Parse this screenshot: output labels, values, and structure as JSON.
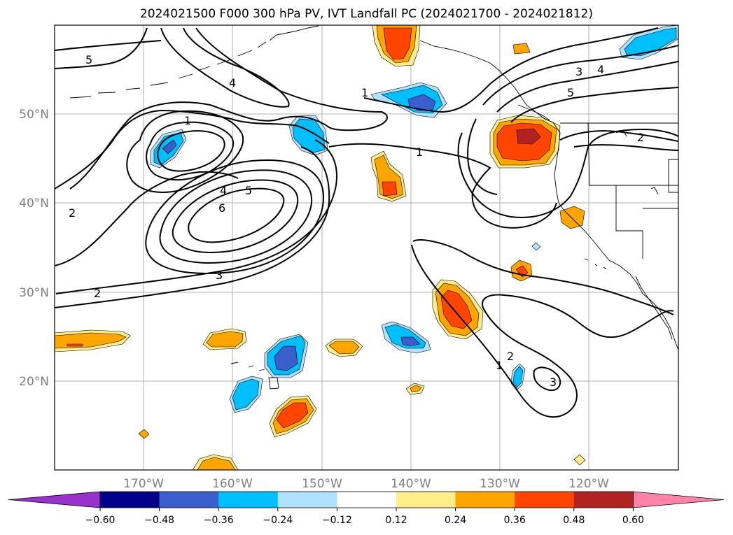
{
  "title": "2024021500 F000 300 hPa PV, IVT Landfall PC (2024021700 - 2024021812)",
  "map": {
    "lat_labels": [
      "50°N",
      "40°N",
      "30°N",
      "20°N"
    ],
    "lon_labels": [
      "170°W",
      "160°W",
      "150°W",
      "140°W",
      "130°W",
      "120°W"
    ],
    "extent": {
      "lon": [
        -180,
        -110
      ],
      "lat": [
        10,
        60
      ]
    },
    "gridlines": true
  },
  "contours": {
    "variable": "300 hPa PV",
    "labels": [
      "5",
      "4",
      "1",
      "4",
      "5",
      "6",
      "2",
      "3",
      "2",
      "1",
      "1",
      "3",
      "4",
      "5",
      "2",
      "2",
      "1",
      "3"
    ]
  },
  "colorbar": {
    "ticks": [
      "−0.60",
      "−0.48",
      "−0.36",
      "−0.24",
      "−0.12",
      "0.12",
      "0.24",
      "0.36",
      "0.48",
      "0.60"
    ],
    "colors": [
      "#9932cc",
      "#00008b",
      "#3a5fcd",
      "#00bfff",
      "#b0e2ff",
      "#ffffff",
      "#ffec8b",
      "#ffa500",
      "#ff4500",
      "#b22222",
      "#ff82ab"
    ]
  }
}
